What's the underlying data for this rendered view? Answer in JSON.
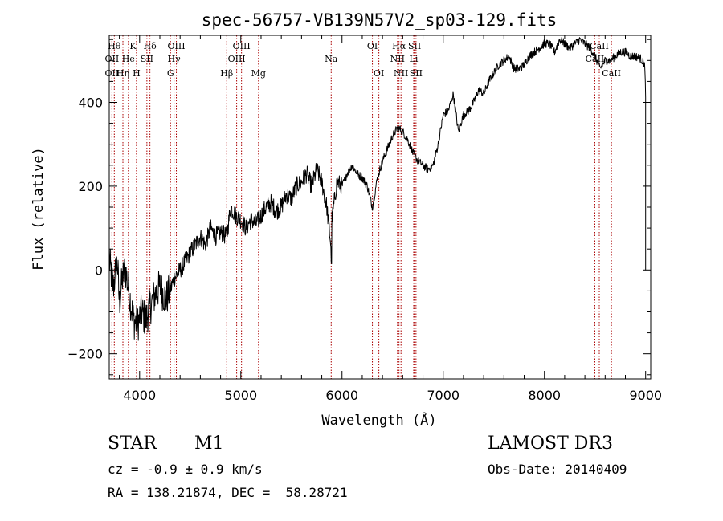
{
  "chart_data": {
    "type": "line",
    "title": "spec-56757-VB139N57V2_sp03-129.fits",
    "xlabel": "Wavelength (Å)",
    "ylabel": "Flux (relative)",
    "xlim": [
      3700,
      9050
    ],
    "ylim": [
      -260,
      560
    ],
    "xticks": [
      4000,
      5000,
      6000,
      7000,
      8000,
      9000
    ],
    "yticks": [
      -200,
      0,
      200,
      400
    ],
    "spectrum_anchors": [
      [
        3700,
        20
      ],
      [
        3740,
        -40
      ],
      [
        3780,
        20
      ],
      [
        3800,
        -80
      ],
      [
        3830,
        -20
      ],
      [
        3860,
        0
      ],
      [
        3900,
        -60
      ],
      [
        3940,
        -120
      ],
      [
        3980,
        -130
      ],
      [
        4020,
        -100
      ],
      [
        4060,
        -120
      ],
      [
        4100,
        -90
      ],
      [
        4150,
        -60
      ],
      [
        4200,
        -40
      ],
      [
        4260,
        -70
      ],
      [
        4300,
        -50
      ],
      [
        4340,
        -20
      ],
      [
        4400,
        0
      ],
      [
        4450,
        20
      ],
      [
        4500,
        40
      ],
      [
        4550,
        60
      ],
      [
        4600,
        80
      ],
      [
        4650,
        60
      ],
      [
        4700,
        100
      ],
      [
        4750,
        80
      ],
      [
        4800,
        90
      ],
      [
        4860,
        80
      ],
      [
        4900,
        150
      ],
      [
        4950,
        130
      ],
      [
        5000,
        120
      ],
      [
        5050,
        100
      ],
      [
        5100,
        120
      ],
      [
        5150,
        110
      ],
      [
        5200,
        130
      ],
      [
        5250,
        150
      ],
      [
        5300,
        160
      ],
      [
        5350,
        140
      ],
      [
        5400,
        150
      ],
      [
        5450,
        180
      ],
      [
        5500,
        170
      ],
      [
        5550,
        200
      ],
      [
        5600,
        210
      ],
      [
        5650,
        230
      ],
      [
        5700,
        200
      ],
      [
        5750,
        240
      ],
      [
        5800,
        210
      ],
      [
        5850,
        150
      ],
      [
        5890,
        60
      ],
      [
        5895,
        -20
      ],
      [
        5900,
        120
      ],
      [
        5950,
        210
      ],
      [
        6000,
        200
      ],
      [
        6050,
        230
      ],
      [
        6100,
        250
      ],
      [
        6150,
        230
      ],
      [
        6200,
        220
      ],
      [
        6250,
        200
      ],
      [
        6300,
        150
      ],
      [
        6350,
        220
      ],
      [
        6400,
        260
      ],
      [
        6450,
        290
      ],
      [
        6500,
        320
      ],
      [
        6550,
        340
      ],
      [
        6600,
        330
      ],
      [
        6650,
        310
      ],
      [
        6700,
        280
      ],
      [
        6750,
        260
      ],
      [
        6800,
        250
      ],
      [
        6850,
        240
      ],
      [
        6900,
        250
      ],
      [
        6950,
        300
      ],
      [
        7000,
        370
      ],
      [
        7050,
        380
      ],
      [
        7100,
        420
      ],
      [
        7150,
        330
      ],
      [
        7200,
        370
      ],
      [
        7250,
        380
      ],
      [
        7300,
        400
      ],
      [
        7350,
        430
      ],
      [
        7400,
        420
      ],
      [
        7450,
        450
      ],
      [
        7500,
        470
      ],
      [
        7550,
        490
      ],
      [
        7600,
        500
      ],
      [
        7650,
        510
      ],
      [
        7700,
        480
      ],
      [
        7750,
        480
      ],
      [
        7800,
        490
      ],
      [
        7850,
        510
      ],
      [
        7900,
        520
      ],
      [
        7950,
        530
      ],
      [
        8000,
        540
      ],
      [
        8050,
        540
      ],
      [
        8100,
        520
      ],
      [
        8150,
        550
      ],
      [
        8200,
        540
      ],
      [
        8250,
        530
      ],
      [
        8300,
        540
      ],
      [
        8350,
        550
      ],
      [
        8400,
        540
      ],
      [
        8450,
        530
      ],
      [
        8500,
        510
      ],
      [
        8550,
        480
      ],
      [
        8600,
        500
      ],
      [
        8650,
        500
      ],
      [
        8700,
        510
      ],
      [
        8750,
        520
      ],
      [
        8800,
        520
      ],
      [
        8850,
        510
      ],
      [
        8900,
        510
      ],
      [
        8950,
        505
      ],
      [
        8990,
        490
      ],
      [
        9000,
        420
      ]
    ],
    "lines": [
      {
        "label": "Hθ",
        "x": 3750,
        "row": 1
      },
      {
        "label": "OII",
        "x": 3727,
        "row": 2
      },
      {
        "label": "OII",
        "x": 3727,
        "row": 3
      },
      {
        "label": "K",
        "x": 3934,
        "row": 1
      },
      {
        "label": "He",
        "x": 3889,
        "row": 2
      },
      {
        "label": "Hη",
        "x": 3835,
        "row": 3
      },
      {
        "label": "Hδ",
        "x": 4102,
        "row": 1
      },
      {
        "label": "SII",
        "x": 4072,
        "row": 2
      },
      {
        "label": "H",
        "x": 3969,
        "row": 3
      },
      {
        "label": "OIII",
        "x": 4363,
        "row": 1
      },
      {
        "label": "Hγ",
        "x": 4340,
        "row": 2
      },
      {
        "label": "G",
        "x": 4305,
        "row": 3
      },
      {
        "label": "OIII",
        "x": 5007,
        "row": 1
      },
      {
        "label": "OIII",
        "x": 4959,
        "row": 2
      },
      {
        "label": "Hβ",
        "x": 4861,
        "row": 3
      },
      {
        "label": "Mg",
        "x": 5175,
        "row": 3
      },
      {
        "label": "Na",
        "x": 5893,
        "row": 2
      },
      {
        "label": "OI",
        "x": 6300,
        "row": 1
      },
      {
        "label": "OI",
        "x": 6364,
        "row": 3
      },
      {
        "label": "Hα",
        "x": 6563,
        "row": 1
      },
      {
        "label": "SII",
        "x": 6717,
        "row": 1
      },
      {
        "label": "NII",
        "x": 6548,
        "row": 2
      },
      {
        "label": "Li",
        "x": 6708,
        "row": 2
      },
      {
        "label": "NII",
        "x": 6583,
        "row": 3
      },
      {
        "label": "SII",
        "x": 6731,
        "row": 3
      },
      {
        "label": "CaII",
        "x": 8542,
        "row": 1
      },
      {
        "label": "CaII",
        "x": 8498,
        "row": 2
      },
      {
        "label": "CaII",
        "x": 8662,
        "row": 3
      }
    ],
    "grid": false,
    "line_color": "#000000",
    "marker_color": "#aa0000"
  },
  "info": {
    "obj_class": "STAR",
    "subclass": "M1",
    "cz": "cz = -0.9 ± 0.9 km/s",
    "radec": "RA = 138.21874, DEC =  58.28721",
    "survey": "LAMOST DR3",
    "obs_date": "Obs-Date: 20140409"
  }
}
